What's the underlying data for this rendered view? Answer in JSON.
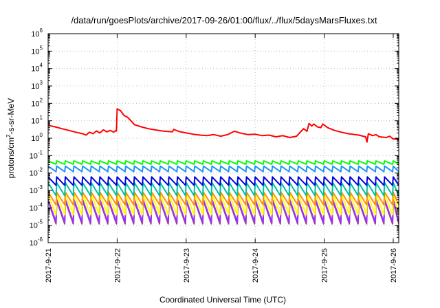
{
  "chart_data": {
    "type": "line",
    "title": "/data/run/goesPlots/archive/2017-09-26/01:00/flux/../flux/5daysMarsFluxes.txt",
    "xlabel": "Coordinated Universal Time (UTC)",
    "ylabel_parts": [
      "protons/cm",
      "2",
      "-s-sr-MeV"
    ],
    "y_scale": "log",
    "ylim_exp": [
      -6,
      6
    ],
    "y_tick_exponents": [
      -6,
      -5,
      -4,
      -3,
      -2,
      -1,
      0,
      1,
      2,
      3,
      4,
      5,
      6
    ],
    "y_tick_base": "10",
    "x_range_days": [
      0,
      5.08
    ],
    "x_ticks": [
      {
        "pos": 0,
        "label": "2017-9-21"
      },
      {
        "pos": 1,
        "label": "2017-9-22"
      },
      {
        "pos": 2,
        "label": "2017-9-23"
      },
      {
        "pos": 3,
        "label": "2017-9-24"
      },
      {
        "pos": 4,
        "label": "2017-9-25"
      },
      {
        "pos": 5,
        "label": "2017-9-26"
      }
    ],
    "grid": true,
    "legend": "none",
    "sawtooth_period_days": 0.125,
    "series": [
      {
        "color": "#ff0000",
        "points": [
          [
            0,
            5.5
          ],
          [
            0.1,
            4.5
          ],
          [
            0.2,
            3.5
          ],
          [
            0.3,
            2.8
          ],
          [
            0.4,
            2.2
          ],
          [
            0.5,
            1.8
          ],
          [
            0.55,
            1.5
          ],
          [
            0.6,
            2.2
          ],
          [
            0.65,
            1.8
          ],
          [
            0.7,
            2.6
          ],
          [
            0.75,
            2.0
          ],
          [
            0.8,
            3.0
          ],
          [
            0.85,
            2.3
          ],
          [
            0.9,
            2.8
          ],
          [
            0.95,
            2.2
          ],
          [
            0.98,
            2.8
          ],
          [
            0.99,
            2.6
          ],
          [
            1.0,
            48
          ],
          [
            1.05,
            38
          ],
          [
            1.1,
            20
          ],
          [
            1.15,
            16
          ],
          [
            1.2,
            10
          ],
          [
            1.25,
            6
          ],
          [
            1.35,
            4.5
          ],
          [
            1.45,
            3.5
          ],
          [
            1.55,
            3.0
          ],
          [
            1.65,
            2.6
          ],
          [
            1.8,
            2.3
          ],
          [
            1.82,
            3.2
          ],
          [
            1.9,
            2.4
          ],
          [
            2.0,
            2.0
          ],
          [
            2.1,
            1.7
          ],
          [
            2.2,
            1.5
          ],
          [
            2.3,
            1.4
          ],
          [
            2.4,
            1.6
          ],
          [
            2.5,
            1.3
          ],
          [
            2.6,
            1.6
          ],
          [
            2.7,
            2.5
          ],
          [
            2.8,
            1.9
          ],
          [
            2.9,
            1.6
          ],
          [
            3.0,
            1.7
          ],
          [
            3.1,
            1.4
          ],
          [
            3.2,
            1.5
          ],
          [
            3.3,
            1.2
          ],
          [
            3.4,
            1.4
          ],
          [
            3.5,
            1.1
          ],
          [
            3.6,
            1.3
          ],
          [
            3.7,
            3.5
          ],
          [
            3.75,
            2.5
          ],
          [
            3.78,
            7.0
          ],
          [
            3.82,
            5.0
          ],
          [
            3.85,
            6.5
          ],
          [
            3.9,
            4.5
          ],
          [
            3.95,
            4.0
          ],
          [
            3.98,
            6.5
          ],
          [
            4.05,
            4.0
          ],
          [
            4.15,
            2.8
          ],
          [
            4.25,
            2.2
          ],
          [
            4.35,
            1.8
          ],
          [
            4.5,
            1.5
          ],
          [
            4.6,
            1.2
          ],
          [
            4.62,
            0.6
          ],
          [
            4.64,
            1.8
          ],
          [
            4.7,
            1.4
          ],
          [
            4.75,
            1.6
          ],
          [
            4.8,
            1.2
          ],
          [
            4.9,
            1.1
          ],
          [
            4.95,
            1.3
          ],
          [
            5.0,
            0.9
          ],
          [
            5.08,
            0.9
          ]
        ]
      },
      {
        "color": "#00ff00",
        "sawtooth": [
          0.05,
          0.032
        ]
      },
      {
        "color": "#1e90ff",
        "sawtooth": [
          0.025,
          0.012
        ]
      },
      {
        "color": "#0000e6",
        "sawtooth": [
          0.006,
          0.002
        ]
      },
      {
        "color": "#00c0a0",
        "sawtooth": [
          0.0028,
          0.0005
        ]
      },
      {
        "color": "#ff8c00",
        "sawtooth": [
          0.0008,
          0.00015
        ]
      },
      {
        "color": "#ffff00",
        "sawtooth": [
          0.0006,
          4e-05
        ]
      },
      {
        "color": "#9b30ff",
        "sawtooth": [
          0.0003,
          1.5e-05
        ]
      },
      {
        "color": "#a0407a",
        "sawtooth": [
          0.00025,
          1.2e-05
        ]
      }
    ]
  }
}
